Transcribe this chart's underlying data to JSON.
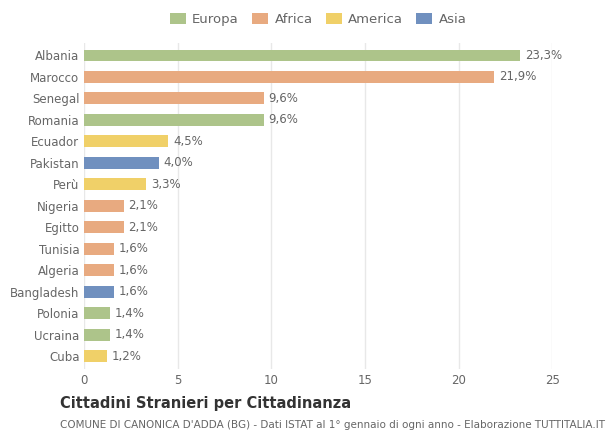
{
  "countries": [
    "Albania",
    "Marocco",
    "Senegal",
    "Romania",
    "Ecuador",
    "Pakistan",
    "Perù",
    "Nigeria",
    "Egitto",
    "Tunisia",
    "Algeria",
    "Bangladesh",
    "Polonia",
    "Ucraina",
    "Cuba"
  ],
  "values": [
    23.3,
    21.9,
    9.6,
    9.6,
    4.5,
    4.0,
    3.3,
    2.1,
    2.1,
    1.6,
    1.6,
    1.6,
    1.4,
    1.4,
    1.2
  ],
  "labels": [
    "23,3%",
    "21,9%",
    "9,6%",
    "9,6%",
    "4,5%",
    "4,0%",
    "3,3%",
    "2,1%",
    "2,1%",
    "1,6%",
    "1,6%",
    "1,6%",
    "1,4%",
    "1,4%",
    "1,2%"
  ],
  "continents": [
    "Europa",
    "Africa",
    "Africa",
    "Europa",
    "America",
    "Asia",
    "America",
    "Africa",
    "Africa",
    "Africa",
    "Africa",
    "Asia",
    "Europa",
    "Europa",
    "America"
  ],
  "colors": {
    "Europa": "#adc48a",
    "Africa": "#e8aa80",
    "America": "#f0d068",
    "Asia": "#7090bf"
  },
  "xlim": [
    0,
    25
  ],
  "xticks": [
    0,
    5,
    10,
    15,
    20,
    25
  ],
  "title": "Cittadini Stranieri per Cittadinanza",
  "subtitle": "COMUNE DI CANONICA D'ADDA (BG) - Dati ISTAT al 1° gennaio di ogni anno - Elaborazione TUTTITALIA.IT",
  "background_color": "#ffffff",
  "plot_bg_color": "#ffffff",
  "bar_height": 0.55,
  "text_color": "#666666",
  "grid_color": "#e8e8e8",
  "label_fontsize": 8.5,
  "tick_fontsize": 8.5,
  "title_fontsize": 10.5,
  "subtitle_fontsize": 7.5,
  "legend_fontsize": 9.5
}
